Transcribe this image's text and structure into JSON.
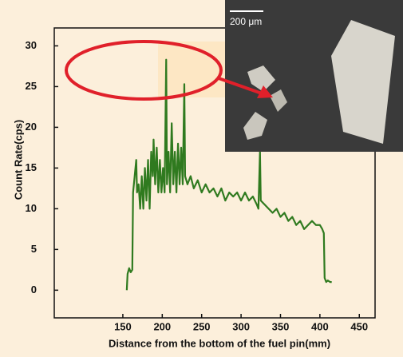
{
  "chart_data": {
    "type": "line",
    "x_label": "Distance from the bottom of the fuel pin(mm)",
    "y_label": "Count Rate(cps)",
    "inset_scale_label": "200 μm",
    "xlim": [
      63,
      470
    ],
    "ylim": [
      -3.4,
      32.2
    ],
    "xticks": [
      150,
      200,
      250,
      300,
      350,
      400,
      450
    ],
    "yticks": [
      0,
      5,
      10,
      15,
      20,
      25,
      30
    ],
    "series": [
      {
        "color": "#2f7a1f",
        "x": [
          155,
          156,
          158,
          160,
          162,
          163,
          165,
          167,
          168,
          170,
          172,
          174,
          176,
          178,
          180,
          182,
          184,
          186,
          188,
          189,
          191,
          193,
          195,
          197,
          199,
          201,
          203,
          205,
          206,
          208,
          210,
          212,
          214,
          216,
          218,
          220,
          222,
          224,
          226,
          228,
          229,
          232,
          236,
          240,
          245,
          250,
          255,
          260,
          265,
          270,
          275,
          280,
          285,
          290,
          295,
          300,
          305,
          310,
          315,
          320,
          322,
          324,
          325,
          330,
          335,
          340,
          345,
          350,
          355,
          360,
          365,
          370,
          375,
          380,
          385,
          390,
          395,
          400,
          403,
          405,
          406,
          408,
          410,
          413,
          415
        ],
        "values": [
          0,
          2,
          2.7,
          2.2,
          2.5,
          12,
          14,
          16,
          12,
          13,
          10,
          14,
          10,
          15,
          11,
          16,
          10,
          17,
          14,
          18.5,
          13,
          17.5,
          12,
          16,
          12,
          15,
          12,
          28.3,
          13,
          17,
          12,
          20.5,
          13,
          17,
          12,
          18,
          13,
          17.5,
          13,
          25.3,
          14,
          13,
          14,
          12.5,
          13.5,
          12,
          13,
          12,
          12.5,
          11.5,
          12.5,
          11,
          12,
          11.5,
          12,
          11,
          12,
          11,
          11.5,
          10.5,
          10,
          17,
          11,
          10.5,
          10,
          9.5,
          10,
          9,
          9.5,
          8.5,
          9,
          8,
          8.5,
          7.5,
          8,
          8.5,
          8,
          8,
          7.5,
          7,
          1.5,
          1,
          1.2,
          1,
          1
        ]
      }
    ]
  }
}
